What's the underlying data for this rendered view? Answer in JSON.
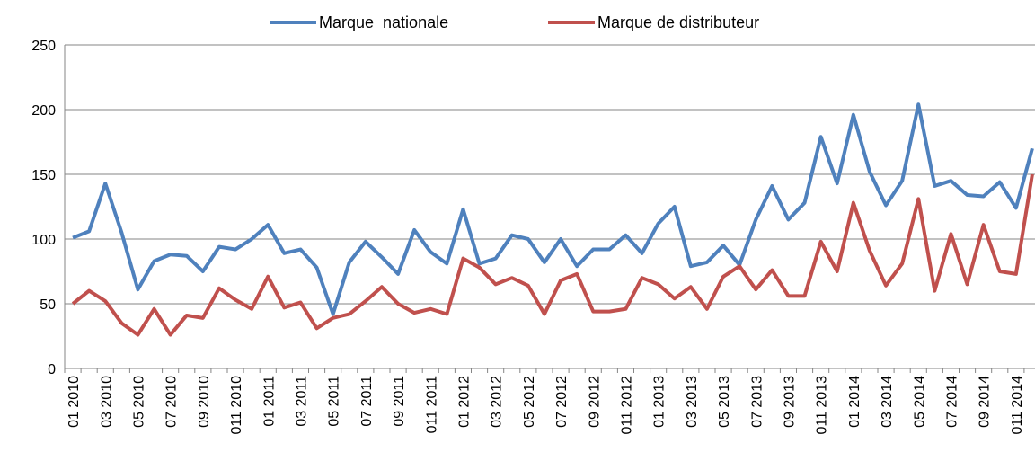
{
  "chart_data": {
    "type": "line",
    "categories": [
      "01 2010",
      null,
      "03 2010",
      null,
      "05 2010",
      null,
      "07 2010",
      null,
      "09 2010",
      null,
      "011 2010",
      null,
      "01 2011",
      null,
      "03 2011",
      null,
      "05 2011",
      null,
      "07 2011",
      null,
      "09 2011",
      null,
      "011 2011",
      null,
      "01 2012",
      null,
      "03 2012",
      null,
      "05 2012",
      null,
      "07 2012",
      null,
      "09 2012",
      null,
      "011 2012",
      null,
      "01 2013",
      null,
      "03 2013",
      null,
      "05 2013",
      null,
      "07 2013",
      null,
      "09 2013",
      null,
      "011 2013",
      null,
      "01 2014",
      null,
      "03 2014",
      null,
      "05 2014",
      null,
      "07 2014",
      null,
      "09 2014",
      null,
      "011 2014",
      null
    ],
    "series": [
      {
        "name": "Marque  nationale",
        "color": "#4f81bd",
        "values": [
          101,
          106,
          143,
          105,
          61,
          83,
          88,
          87,
          75,
          94,
          92,
          100,
          111,
          89,
          92,
          78,
          42,
          82,
          98,
          86,
          73,
          107,
          90,
          81,
          123,
          81,
          85,
          103,
          100,
          82,
          100,
          79,
          92,
          92,
          103,
          89,
          112,
          125,
          79,
          82,
          95,
          80,
          115,
          141,
          115,
          128,
          179,
          143,
          196,
          152,
          126,
          145,
          204,
          141,
          145,
          134,
          133,
          144,
          124,
          170
        ]
      },
      {
        "name": "Marque de distributeur",
        "color": "#c0504d",
        "values": [
          50,
          60,
          52,
          35,
          26,
          46,
          26,
          41,
          39,
          62,
          53,
          46,
          71,
          47,
          51,
          31,
          39,
          42,
          52,
          63,
          50,
          43,
          46,
          42,
          85,
          78,
          65,
          70,
          64,
          42,
          68,
          73,
          44,
          44,
          46,
          70,
          65,
          54,
          63,
          46,
          71,
          79,
          61,
          76,
          56,
          56,
          98,
          75,
          128,
          91,
          64,
          81,
          131,
          60,
          104,
          65,
          111,
          75,
          73,
          150
        ]
      }
    ],
    "ylim": [
      0,
      250
    ],
    "yticks": [
      0,
      50,
      100,
      150,
      200,
      250
    ],
    "grid": true,
    "legend": "top"
  }
}
